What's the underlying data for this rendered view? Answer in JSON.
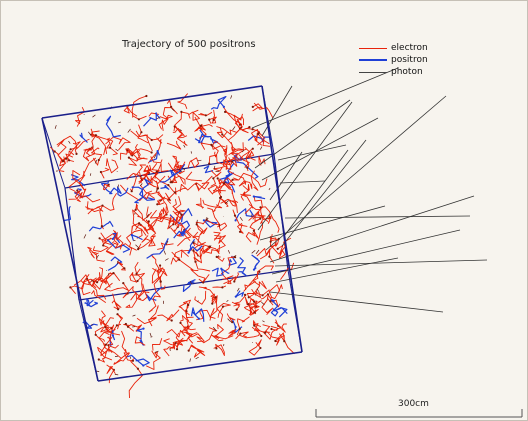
{
  "viewer": {
    "title": "Trajectory of 500 positrons",
    "background": "#f7f4ee"
  },
  "legend": {
    "items": [
      {
        "label": "electron",
        "color": "#e8230b",
        "icon": "line-red"
      },
      {
        "label": "positron",
        "color": "#1f3fd6",
        "icon": "line-blue-thick"
      },
      {
        "label": "photon",
        "color": "#444444",
        "icon": "line-gray"
      }
    ]
  },
  "colors": {
    "box": "#1a1f8a",
    "electron": "#e8230b",
    "positron": "#1f3fd6",
    "photon": "#333333"
  },
  "scale": {
    "label": "300cm"
  }
}
